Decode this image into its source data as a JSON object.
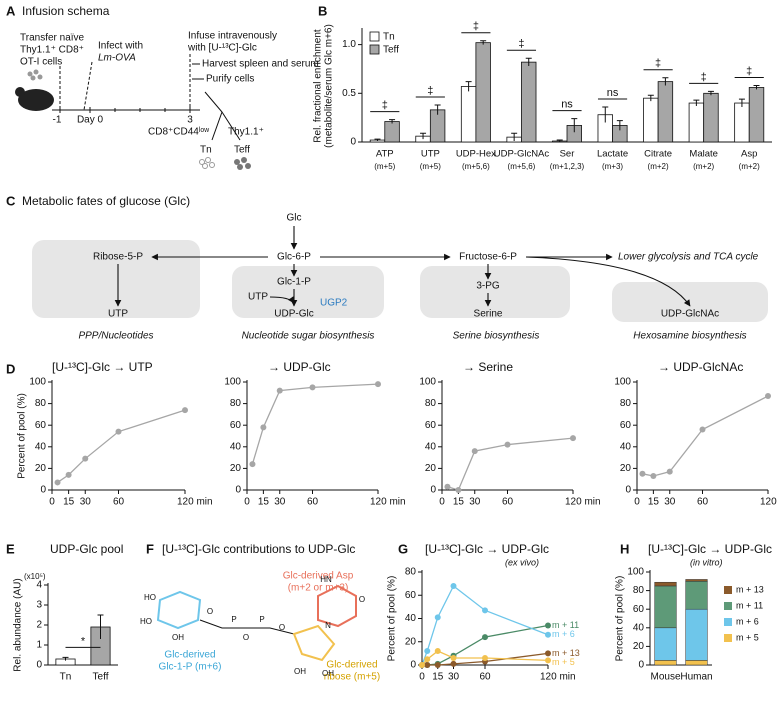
{
  "panel_a": {
    "panel": "A",
    "title": "Infusion schema",
    "labels": [
      "Transfer naïve",
      "Thy1.1⁺ CD8⁺",
      "OT-I cells",
      "Infect with",
      "Lm-OVA",
      "Infuse intravenously",
      "with [U-¹³C]-Glc",
      "Harvest spleen and serum",
      "Purify cells",
      "-1",
      "Day 0",
      "3",
      "CD8⁺CD44ˡᵒʷ",
      "Thy1.1⁺",
      "Tn",
      "Teff"
    ]
  },
  "panel_c": {
    "panel": "C",
    "title": "Metabolic fates of glucose (Glc)",
    "nodes": [
      "Glc",
      "Glc-6-P",
      "Ribose-5-P",
      "Fructose-6-P",
      "Lower glycolysis and TCA cycle",
      "UTP",
      "Glc-1-P",
      "UTP",
      "UGP2",
      "UDP-Glc",
      "3-PG",
      "Serine",
      "UDP-GlcNAc"
    ],
    "captions": [
      "PPP/Nucleotides",
      "Nucleotide sugar biosynthesis",
      "Serine biosynthesis",
      "Hexosamine biosynthesis"
    ]
  },
  "panel_f": {
    "panel": "F",
    "title": "[U-¹³C]-Glc contributions to UDP-Glc",
    "atoms": [
      "HO",
      "HO",
      "OH",
      "O",
      "P",
      "O",
      "P",
      "O",
      "HN",
      "N",
      "O",
      "OH",
      "OH"
    ],
    "annotations": [
      "Glc-derived Asp",
      "(m+2 or m+3)",
      "Glc-derived",
      "Glc-1-P (m+6)",
      "Glc-derived",
      "ribose (m+5)"
    ]
  },
  "chart_data": [
    {
      "type": "bar",
      "panel": "B",
      "ylabel": "Rel. fractional enrichment",
      "ylabel2": "(metabolite/serum Glc m+6)",
      "categories": [
        "ATP",
        "UTP",
        "UDP-Hex",
        "UDP-GlcNAc",
        "Ser",
        "Lactate",
        "Citrate",
        "Malate",
        "Asp"
      ],
      "category_notes": [
        "(m+5)",
        "(m+5)",
        "(m+5,6)",
        "(m+5,6)",
        "(m+1,2,3)",
        "(m+3)",
        "(m+2)",
        "(m+2)",
        "(m+2)"
      ],
      "series": [
        {
          "name": "Tn",
          "color": "#ffffff",
          "values": [
            0.02,
            0.06,
            0.57,
            0.05,
            0.01,
            0.28,
            0.45,
            0.4,
            0.4
          ],
          "errors": [
            0.01,
            0.03,
            0.05,
            0.04,
            0.01,
            0.08,
            0.03,
            0.03,
            0.04
          ]
        },
        {
          "name": "Teff",
          "color": "#a6a6a6",
          "values": [
            0.21,
            0.33,
            1.02,
            0.82,
            0.17,
            0.17,
            0.62,
            0.5,
            0.56
          ],
          "errors": [
            0.02,
            0.05,
            0.02,
            0.04,
            0.07,
            0.05,
            0.04,
            0.02,
            0.02
          ]
        }
      ],
      "significance": [
        "‡",
        "‡",
        "‡",
        "‡",
        "ns",
        "ns",
        "‡",
        "‡",
        "‡"
      ],
      "ylim": [
        0,
        1.15
      ],
      "yticks": [
        0,
        0.5,
        {
          "value": 1,
          "label": "1.0"
        }
      ],
      "legend": "upper left"
    },
    {
      "type": "line",
      "panel": "D",
      "title": "[U-¹³C]-Glc → UTP",
      "ylabel": "Percent of pool (%)",
      "x": [
        5,
        15,
        30,
        60,
        120
      ],
      "values": [
        7,
        14,
        29,
        54,
        74
      ],
      "color": "#a6a6a6",
      "xlim": [
        0,
        120
      ],
      "xticks": [
        0,
        15,
        30,
        60,
        {
          "value": 120,
          "label": "120 min"
        }
      ],
      "ylim": [
        0,
        100
      ],
      "yticks": [
        0,
        20,
        40,
        60,
        80,
        100
      ]
    },
    {
      "type": "line",
      "title": "→ UDP-Glc",
      "x": [
        5,
        15,
        30,
        60,
        120
      ],
      "values": [
        24,
        58,
        92,
        95,
        98
      ],
      "color": "#a6a6a6",
      "xlim": [
        0,
        120
      ],
      "xticks": [
        0,
        15,
        30,
        60,
        {
          "value": 120,
          "label": "120 min"
        }
      ],
      "ylim": [
        0,
        100
      ],
      "yticks": [
        0,
        20,
        40,
        60,
        80,
        100
      ]
    },
    {
      "type": "line",
      "title": "→ Serine",
      "x": [
        5,
        15,
        30,
        60,
        120
      ],
      "values": [
        3,
        0,
        36,
        42,
        48
      ],
      "color": "#a6a6a6",
      "xlim": [
        0,
        120
      ],
      "xticks": [
        0,
        15,
        30,
        60,
        {
          "value": 120,
          "label": "120 min"
        }
      ],
      "ylim": [
        0,
        100
      ],
      "yticks": [
        0,
        20,
        40,
        60,
        80,
        100
      ]
    },
    {
      "type": "line",
      "title": "→ UDP-GlcNAc",
      "x": [
        5,
        15,
        30,
        60,
        120
      ],
      "values": [
        15,
        13,
        17,
        56,
        87
      ],
      "color": "#a6a6a6",
      "xlim": [
        0,
        120
      ],
      "xticks": [
        0,
        15,
        30,
        60,
        {
          "value": 120,
          "label": "120 min"
        }
      ],
      "ylim": [
        0,
        100
      ],
      "yticks": [
        0,
        20,
        40,
        60,
        80,
        100
      ]
    },
    {
      "type": "bar",
      "panel": "E",
      "title": "UDP-Glc pool",
      "ylabel": "Rel. abundance (AU)",
      "ylabel_note": "(x10⁵)",
      "categories": [
        "Tn",
        "Teff"
      ],
      "values": [
        0.3,
        1.9
      ],
      "errors": [
        0.08,
        0.6
      ],
      "colors": [
        "#ffffff",
        "#a6a6a6"
      ],
      "significance": [
        "*"
      ],
      "ylim": [
        0,
        4
      ],
      "yticks": [
        0,
        1,
        2,
        3,
        4
      ]
    },
    {
      "type": "line",
      "panel": "G",
      "title": "[U-¹³C]-Glc → UDP-Glc",
      "subtitle": "(ex vivo)",
      "ylabel": "Percent of pool (%)",
      "x": [
        0,
        5,
        15,
        30,
        60,
        120
      ],
      "series": [
        {
          "name": "m + 11",
          "color": "#4a8a66",
          "values": [
            0,
            0,
            1,
            8,
            24,
            34
          ]
        },
        {
          "name": "m + 6",
          "color": "#6ec6ea",
          "values": [
            0,
            12,
            41,
            68,
            47,
            26
          ]
        },
        {
          "name": "m + 13",
          "color": "#8b5a2b",
          "values": [
            0,
            0,
            0,
            1,
            3,
            10
          ]
        },
        {
          "name": "m + 5",
          "color": "#f2c14e",
          "values": [
            0,
            5,
            12,
            6,
            6,
            4
          ]
        }
      ],
      "xlim": [
        0,
        120
      ],
      "xticks": [
        0,
        15,
        30,
        60,
        {
          "value": 120,
          "label": "120 min"
        }
      ],
      "ylim": [
        0,
        80
      ],
      "yticks": [
        0,
        20,
        40,
        60,
        80
      ]
    },
    {
      "type": "stacked_bar",
      "panel": "H",
      "title": "[U-¹³C]-Glc → UDP-Glc",
      "subtitle": "(in vitro)",
      "ylabel": "Percent of pool (%)",
      "categories": [
        "Mouse",
        "Human"
      ],
      "series": [
        {
          "name": "m + 5",
          "color": "#f2c14e",
          "values": [
            5,
            5
          ]
        },
        {
          "name": "m + 6",
          "color": "#6ec6ea",
          "values": [
            35,
            55
          ]
        },
        {
          "name": "m + 11",
          "color": "#5e9a78",
          "values": [
            45,
            30
          ]
        },
        {
          "name": "m + 13",
          "color": "#8b5a2b",
          "values": [
            4,
            2
          ]
        }
      ],
      "ylim": [
        0,
        100
      ],
      "yticks": [
        0,
        20,
        40,
        60,
        80,
        100
      ]
    }
  ]
}
